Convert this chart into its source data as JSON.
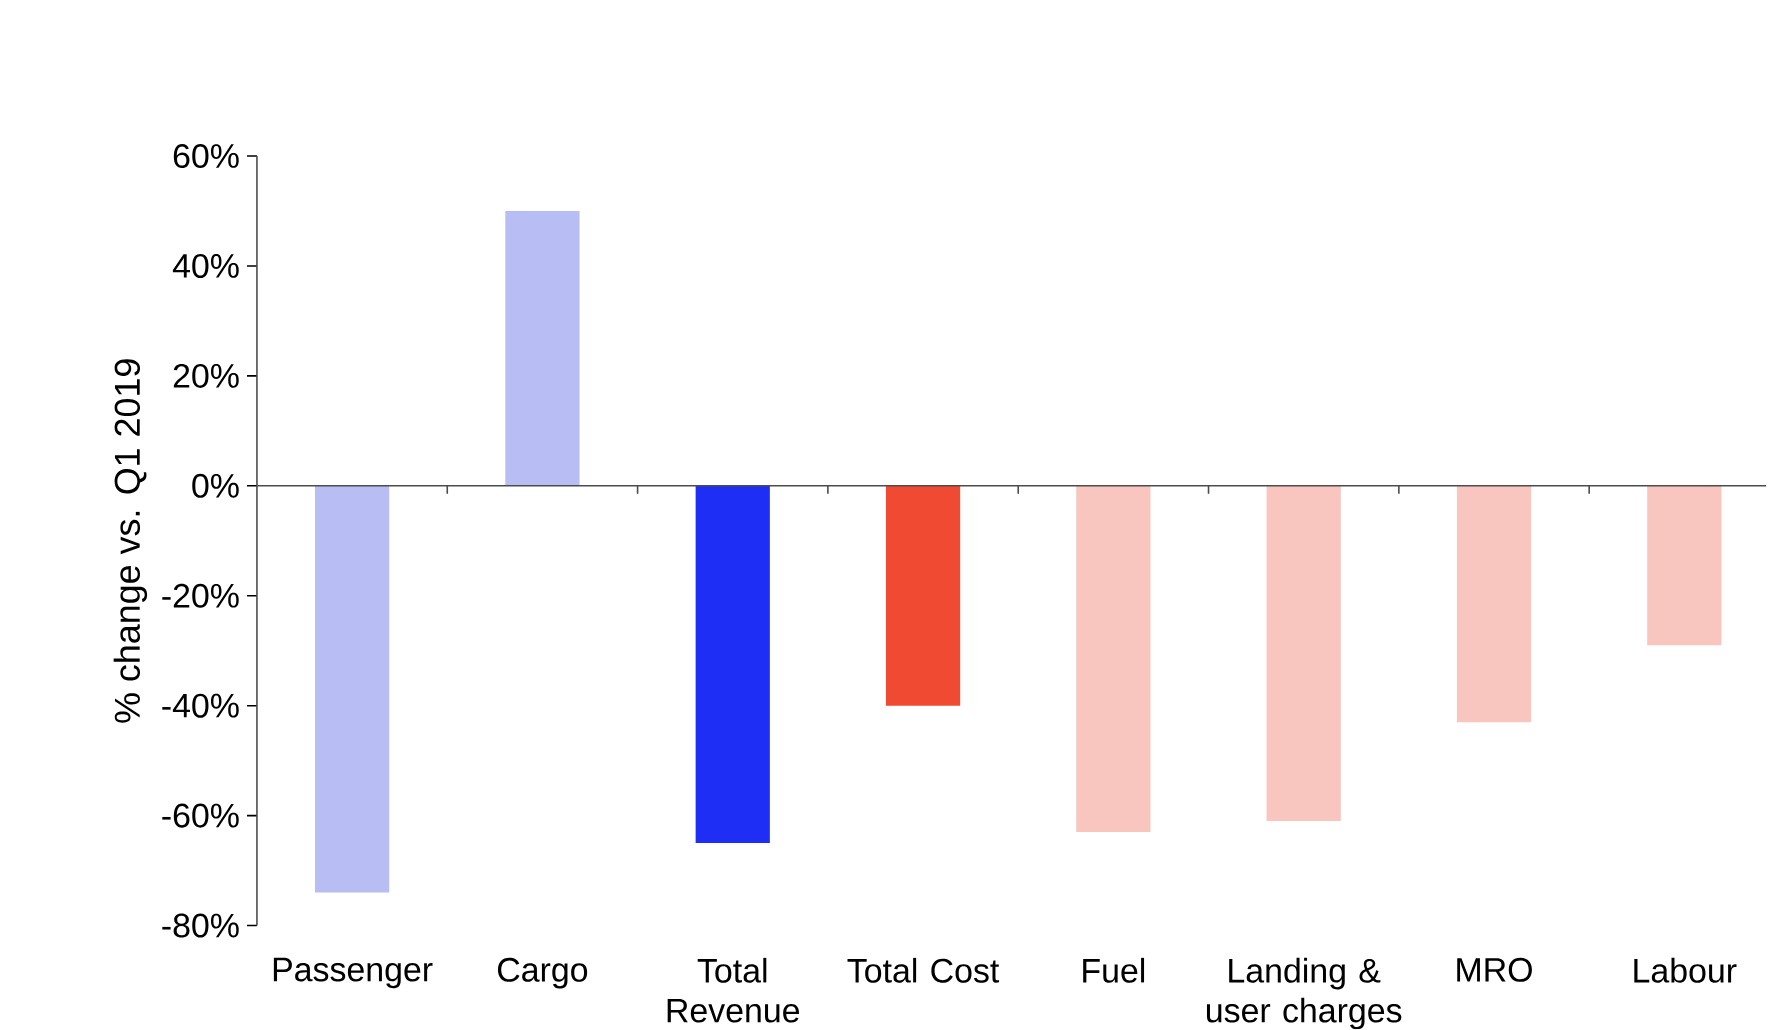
{
  "chart_data": {
    "type": "bar",
    "ylabel": "% change vs. Q1 2019",
    "categories": [
      "Passenger",
      "Cargo",
      "Total Revenue",
      "Total Cost",
      "Fuel",
      "Landing & user charges",
      "MRO",
      "Labour"
    ],
    "values": [
      -74,
      50,
      -65,
      -40,
      -63,
      -61,
      -43,
      -29
    ],
    "colors": [
      "#b8bef4",
      "#b8bef4",
      "#1f2ef5",
      "#f04a32",
      "#f8c6bf",
      "#f8c6bf",
      "#f8c6bf",
      "#f8c6bf"
    ],
    "ylim": [
      -80,
      60
    ],
    "yticks": [
      {
        "value": -80,
        "label": "-80%"
      },
      {
        "value": -60,
        "label": "-60%"
      },
      {
        "value": -40,
        "label": "-40%"
      },
      {
        "value": -20,
        "label": "-20%"
      },
      {
        "value": 0,
        "label": "0%"
      },
      {
        "value": 20,
        "label": "20%"
      },
      {
        "value": 40,
        "label": "40%"
      },
      {
        "value": 60,
        "label": "60%"
      }
    ]
  }
}
